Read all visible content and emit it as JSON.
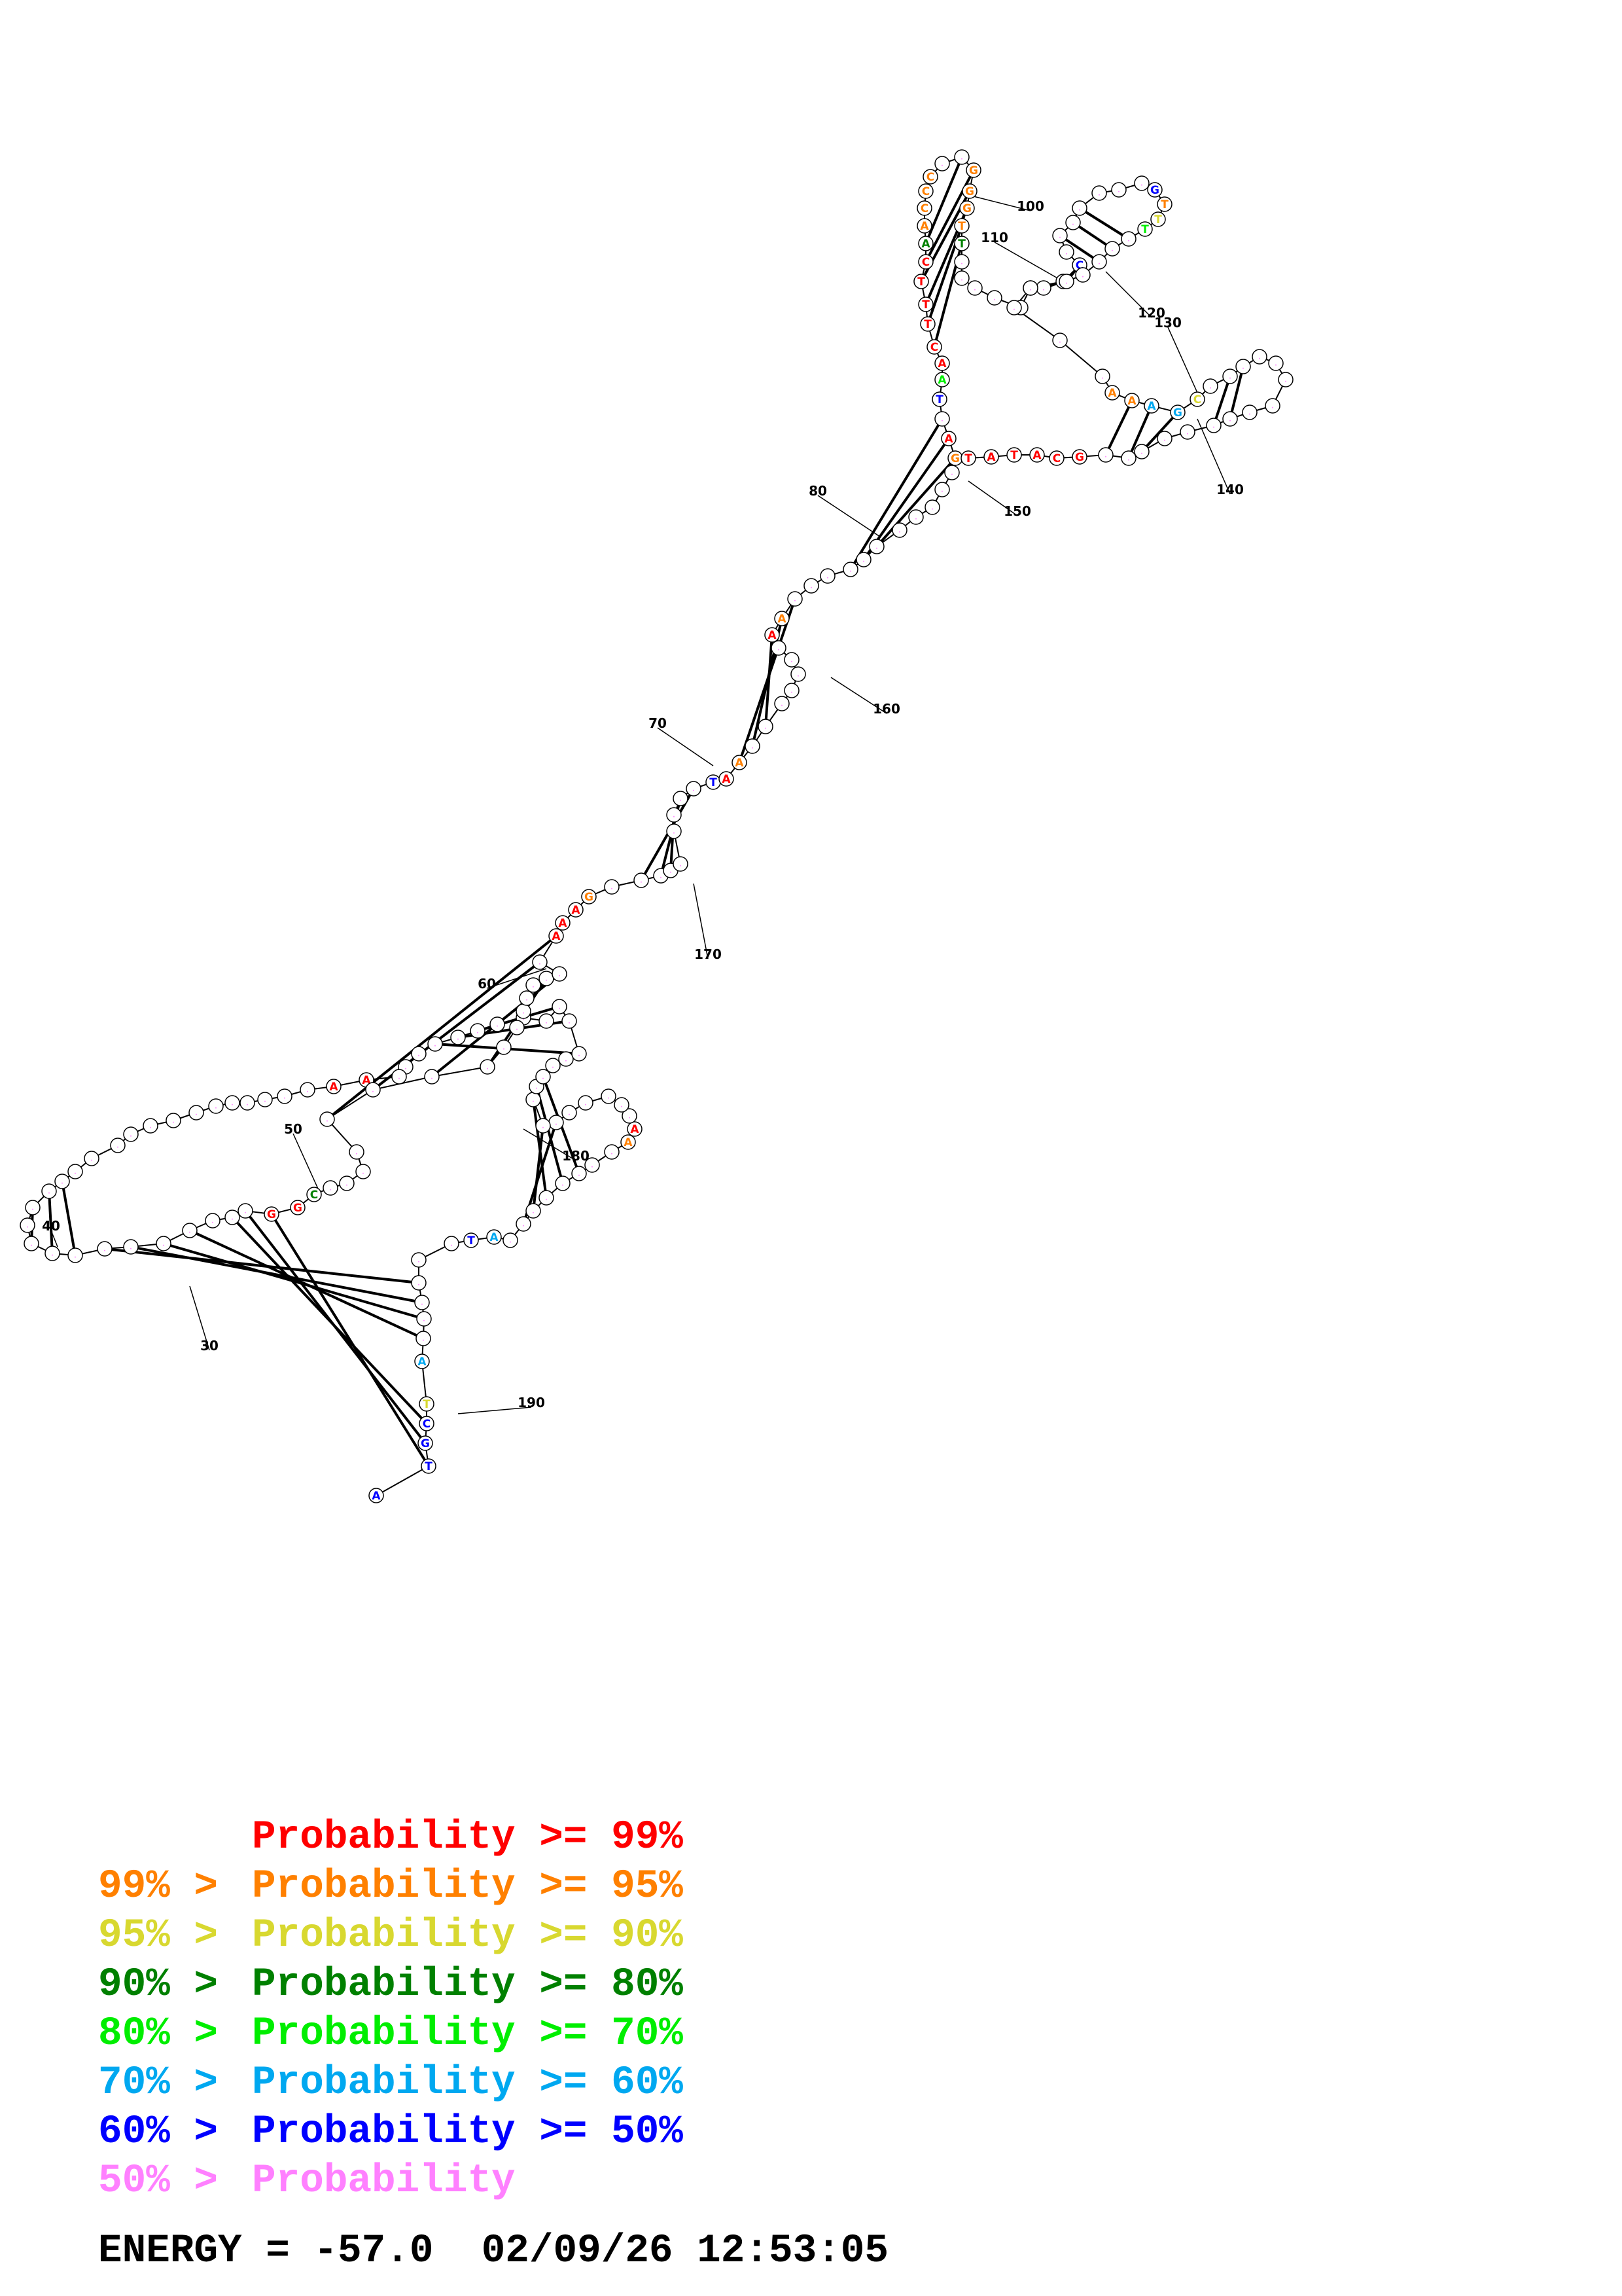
{
  "structure": {
    "position_labels": [
      "30",
      "40",
      "50",
      "60",
      "70",
      "80",
      "100",
      "110",
      "120",
      "130",
      "140",
      "150",
      "160",
      "170",
      "180",
      "190"
    ],
    "colored_bases": [
      {
        "letter": "C",
        "prob": "r99"
      },
      {
        "letter": "T",
        "prob": "r99"
      },
      {
        "letter": "T",
        "prob": "r99"
      },
      {
        "letter": "T",
        "prob": "r99"
      },
      {
        "letter": "C",
        "prob": "r99"
      },
      {
        "letter": "A",
        "prob": "r80"
      },
      {
        "letter": "T",
        "prob": "r80"
      },
      {
        "letter": "A",
        "prob": "r95"
      },
      {
        "letter": "T",
        "prob": "r95"
      },
      {
        "letter": "C",
        "prob": "r95"
      },
      {
        "letter": "G",
        "prob": "r95"
      },
      {
        "letter": "C",
        "prob": "r95"
      },
      {
        "letter": "G",
        "prob": "r95"
      },
      {
        "letter": "C",
        "prob": "r95"
      },
      {
        "letter": "G",
        "prob": "r95"
      },
      {
        "letter": "A",
        "prob": "r99"
      },
      {
        "letter": "A",
        "prob": "r70"
      },
      {
        "letter": "T",
        "prob": "r50"
      },
      {
        "letter": "A",
        "prob": "r95"
      },
      {
        "letter": "A",
        "prob": "r50"
      },
      {
        "letter": "C",
        "prob": "r50"
      },
      {
        "letter": "A",
        "prob": "r99"
      },
      {
        "letter": "G",
        "prob": "r95"
      },
      {
        "letter": "G",
        "prob": "r50"
      },
      {
        "letter": "T",
        "prob": "r95"
      },
      {
        "letter": "T",
        "prob": "r90"
      },
      {
        "letter": "T",
        "prob": "r70"
      },
      {
        "letter": "A",
        "prob": "r95"
      },
      {
        "letter": "A",
        "prob": "r95"
      },
      {
        "letter": "A",
        "prob": "r60"
      },
      {
        "letter": "G",
        "prob": "r60"
      },
      {
        "letter": "C",
        "prob": "r90"
      },
      {
        "letter": "A",
        "prob": "r99"
      },
      {
        "letter": "A",
        "prob": "r95"
      },
      {
        "letter": "A",
        "prob": "r99"
      },
      {
        "letter": "A",
        "prob": "r95"
      },
      {
        "letter": "T",
        "prob": "r50"
      },
      {
        "letter": "A",
        "prob": "r99"
      },
      {
        "letter": "A",
        "prob": "r99"
      },
      {
        "letter": "A",
        "prob": "r99"
      },
      {
        "letter": "G",
        "prob": "r95"
      },
      {
        "letter": "A",
        "prob": "r99"
      },
      {
        "letter": "A",
        "prob": "r99"
      },
      {
        "letter": "A",
        "prob": "r95"
      },
      {
        "letter": "A",
        "prob": "r99"
      },
      {
        "letter": "T",
        "prob": "r50"
      },
      {
        "letter": "A",
        "prob": "r60"
      },
      {
        "letter": "G",
        "prob": "r99"
      },
      {
        "letter": "G",
        "prob": "r99"
      },
      {
        "letter": "C",
        "prob": "r80"
      },
      {
        "letter": "A",
        "prob": "r60"
      },
      {
        "letter": "T",
        "prob": "r90"
      },
      {
        "letter": "C",
        "prob": "r50"
      },
      {
        "letter": "G",
        "prob": "r50"
      },
      {
        "letter": "T",
        "prob": "r50"
      },
      {
        "letter": "A",
        "prob": "r50"
      },
      {
        "letter": "G",
        "prob": "r99"
      },
      {
        "letter": "C",
        "prob": "r99"
      },
      {
        "letter": "A",
        "prob": "r99"
      },
      {
        "letter": "T",
        "prob": "r99"
      },
      {
        "letter": "A",
        "prob": "r99"
      },
      {
        "letter": "T",
        "prob": "r99"
      },
      {
        "letter": "G",
        "prob": "r99"
      },
      {
        "letter": "C",
        "prob": "r99"
      },
      {
        "letter": "A",
        "prob": "r99"
      },
      {
        "letter": "G",
        "prob": "r99"
      },
      {
        "letter": "A",
        "prob": "r99"
      },
      {
        "letter": "T",
        "prob": "r99"
      },
      {
        "letter": "G",
        "prob": "r99"
      }
    ]
  },
  "legend": {
    "colors": {
      "r99": "#ff0000",
      "r95": "#ff8000",
      "r90": "#d8d830",
      "r80": "#008000",
      "r70": "#00ee00",
      "r60": "#00a8f0",
      "r50": "#0000ff",
      "r0": "#ff80ff"
    },
    "items": [
      {
        "prefix": "",
        "text": "Probability >= 99%",
        "color": "#ff0000"
      },
      {
        "prefix": "99% > ",
        "text": "Probability >= 95%",
        "color": "#ff8000"
      },
      {
        "prefix": "95% > ",
        "text": "Probability >= 90%",
        "color": "#d8d830"
      },
      {
        "prefix": "90% > ",
        "text": "Probability >= 80%",
        "color": "#008000"
      },
      {
        "prefix": "80% > ",
        "text": "Probability >= 70%",
        "color": "#00ee00"
      },
      {
        "prefix": "70% > ",
        "text": "Probability >= 60%",
        "color": "#00a8f0"
      },
      {
        "prefix": "60% > ",
        "text": "Probability >= 50%",
        "color": "#0000ff"
      },
      {
        "prefix": "50% > ",
        "text": "Probability",
        "color": "#ff80ff"
      }
    ]
  },
  "energy": {
    "line": "ENERGY = -57.0  02/09/26 12:53:05"
  }
}
